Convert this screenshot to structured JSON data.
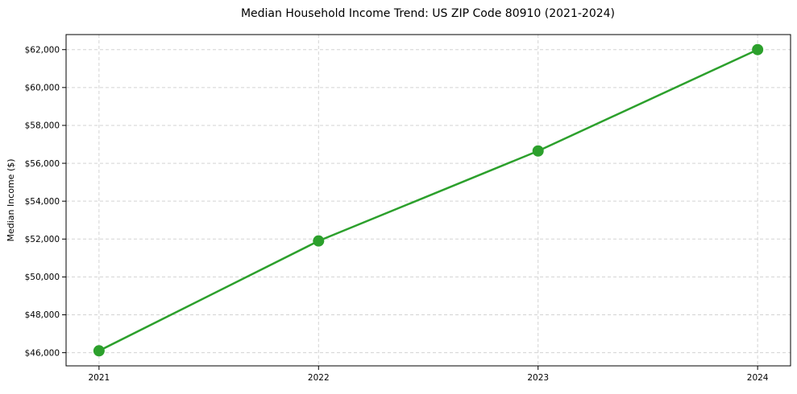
{
  "figure": {
    "background_color": "#ffffff"
  },
  "chart_data": {
    "type": "line",
    "title": "Median Household Income Trend: US ZIP Code 80910 (2021-2024)",
    "xlabel": "",
    "ylabel": "Median Income ($)",
    "x": [
      2021,
      2022,
      2023,
      2024
    ],
    "x_labels": [
      "2021",
      "2022",
      "2023",
      "2024"
    ],
    "series": [
      {
        "name": "median-household-income",
        "values": [
          46100,
          51900,
          56650,
          62000
        ],
        "color": "#2ca02c",
        "marker": "circle",
        "marker_radius": 7,
        "line_width": 2.5
      }
    ],
    "xlim": [
      2020.85,
      2024.15
    ],
    "ylim": [
      45305,
      62795
    ],
    "yticks": [
      46000,
      48000,
      50000,
      52000,
      54000,
      56000,
      58000,
      60000,
      62000
    ],
    "ytick_labels": [
      "$46,000",
      "$48,000",
      "$50,000",
      "$52,000",
      "$54,000",
      "$56,000",
      "$58,000",
      "$60,000",
      "$62,000"
    ],
    "grid": true,
    "grid_color": "#d3d3d3",
    "grid_style": "dashed",
    "frame_color": "#000000",
    "tick_color": "#000000",
    "legend": "none"
  }
}
